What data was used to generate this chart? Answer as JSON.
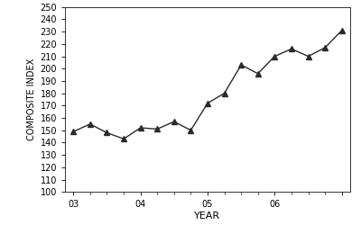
{
  "x_values": [
    0,
    1,
    2,
    3,
    4,
    5,
    6,
    7,
    8,
    9,
    10,
    11,
    12,
    13,
    14,
    15,
    16
  ],
  "y_values": [
    149,
    155,
    148,
    143,
    152,
    151,
    157,
    150,
    172,
    180,
    203,
    196,
    210,
    216,
    210,
    217,
    231
  ],
  "ytick_min": 100,
  "ytick_max": 250,
  "ytick_step": 10,
  "xlabel": "YEAR",
  "ylabel": "COMPOSITE INDEX",
  "line_color": "#2a2a2a",
  "marker": "^",
  "marker_color": "#2a2a2a",
  "marker_size": 4,
  "linewidth": 1.0,
  "background_color": "#ffffff",
  "xlim": [
    -0.5,
    16.5
  ],
  "ylim": [
    100,
    250
  ],
  "major_xtick_positions": [
    0,
    4,
    8,
    12,
    16
  ],
  "major_xtick_labels": [
    "03",
    "04",
    "05",
    "06",
    ""
  ],
  "minor_xtick_positions": [
    1,
    2,
    3,
    5,
    6,
    7,
    9,
    10,
    11,
    13,
    14,
    15
  ]
}
